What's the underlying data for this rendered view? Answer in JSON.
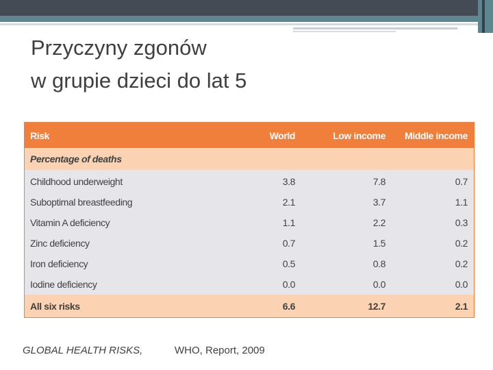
{
  "title": {
    "line1": "Przyczyny zgonów",
    "line2": "w grupie dzieci do lat 5"
  },
  "table": {
    "header": [
      "Risk",
      "World",
      "Low income",
      "Middle income"
    ],
    "section": "Percentage of deaths",
    "rows": [
      [
        "Childhood underweight",
        "3.8",
        "7.8",
        "0.7"
      ],
      [
        "Suboptimal breastfeeding",
        "2.1",
        "3.7",
        "1.1"
      ],
      [
        "Vitamin A deficiency",
        "1.1",
        "2.2",
        "0.3"
      ],
      [
        "Zinc deficiency",
        "0.7",
        "1.5",
        "0.2"
      ],
      [
        "Iron deficiency",
        "0.5",
        "0.8",
        "0.2"
      ],
      [
        "Iodine deficiency",
        "0.0",
        "0.0",
        "0.0"
      ]
    ],
    "total": [
      "All six risks",
      "6.6",
      "12.7",
      "2.1"
    ]
  },
  "source": {
    "italic": "GLOBAL HEALTH RISKS,",
    "rest": "WHO, Report, 2009"
  }
}
